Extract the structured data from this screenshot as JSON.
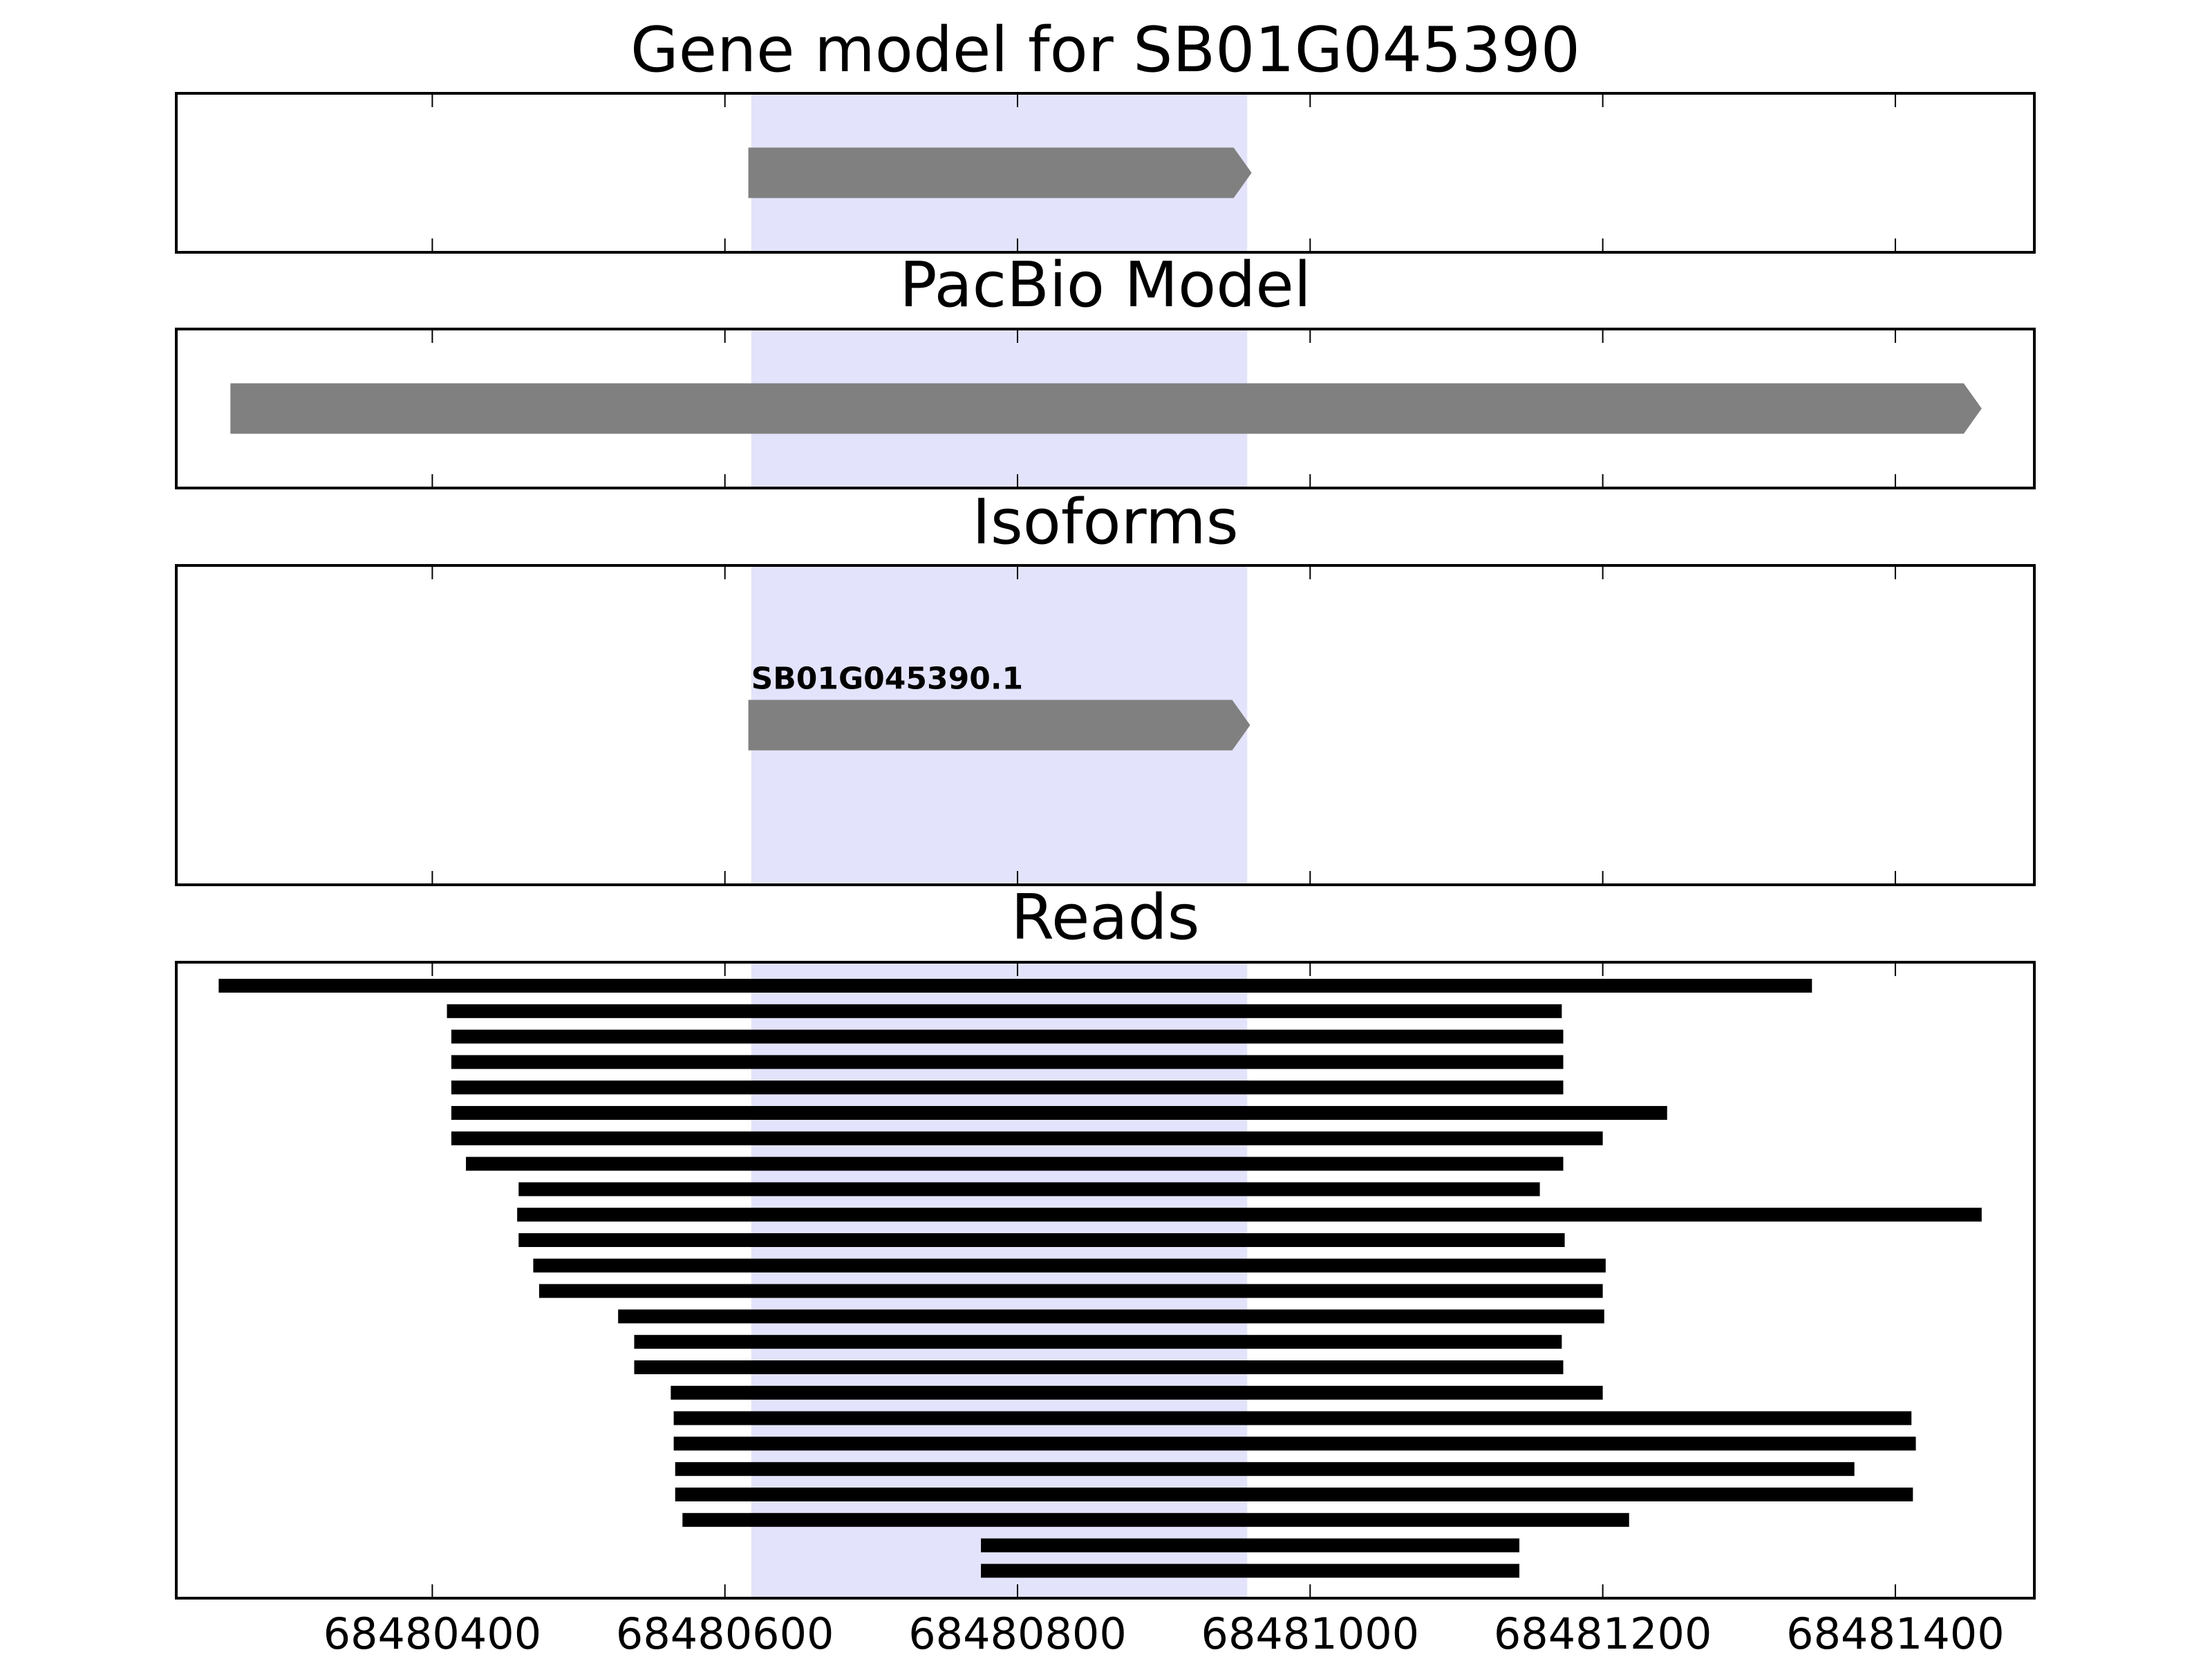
{
  "chart_data": [
    {
      "type": "gene",
      "title": "Gene model for SB01G045390",
      "xlim": [
        68480225,
        68481495
      ],
      "highlight": [
        68480618,
        68480957
      ],
      "features": [
        {
          "start": 68480616,
          "end": 68480960
        }
      ]
    },
    {
      "type": "gene",
      "title": "PacBio Model",
      "xlim": [
        68480225,
        68481495
      ],
      "highlight": [
        68480618,
        68480957
      ],
      "features": [
        {
          "start": 68480262,
          "end": 68481459
        }
      ]
    },
    {
      "type": "gene",
      "title": "Isoforms",
      "xlim": [
        68480225,
        68481495
      ],
      "highlight": [
        68480618,
        68480957
      ],
      "features": [
        {
          "start": 68480616,
          "end": 68480959,
          "label": "SB01G045390.1"
        }
      ]
    },
    {
      "type": "reads",
      "title": "Reads",
      "xlim": [
        68480225,
        68481495
      ],
      "highlight": [
        68480618,
        68480957
      ],
      "xticks": [
        68480400,
        68480600,
        68480800,
        68481000,
        68481200,
        68481400
      ],
      "reads": [
        {
          "start": 68480254,
          "end": 68481343
        },
        {
          "start": 68480410,
          "end": 68481172
        },
        {
          "start": 68480413,
          "end": 68481173
        },
        {
          "start": 68480413,
          "end": 68481173
        },
        {
          "start": 68480413,
          "end": 68481173
        },
        {
          "start": 68480413,
          "end": 68481244
        },
        {
          "start": 68480413,
          "end": 68481200
        },
        {
          "start": 68480423,
          "end": 68481173
        },
        {
          "start": 68480459,
          "end": 68481157
        },
        {
          "start": 68480458,
          "end": 68481459
        },
        {
          "start": 68480459,
          "end": 68481174
        },
        {
          "start": 68480469,
          "end": 68481202
        },
        {
          "start": 68480473,
          "end": 68481200
        },
        {
          "start": 68480527,
          "end": 68481201
        },
        {
          "start": 68480538,
          "end": 68481172
        },
        {
          "start": 68480538,
          "end": 68481173
        },
        {
          "start": 68480563,
          "end": 68481200
        },
        {
          "start": 68480565,
          "end": 68481411
        },
        {
          "start": 68480565,
          "end": 68481414
        },
        {
          "start": 68480566,
          "end": 68481372
        },
        {
          "start": 68480566,
          "end": 68481412
        },
        {
          "start": 68480571,
          "end": 68481218
        },
        {
          "start": 68480775,
          "end": 68481143
        },
        {
          "start": 68480775,
          "end": 68481143
        }
      ]
    }
  ]
}
